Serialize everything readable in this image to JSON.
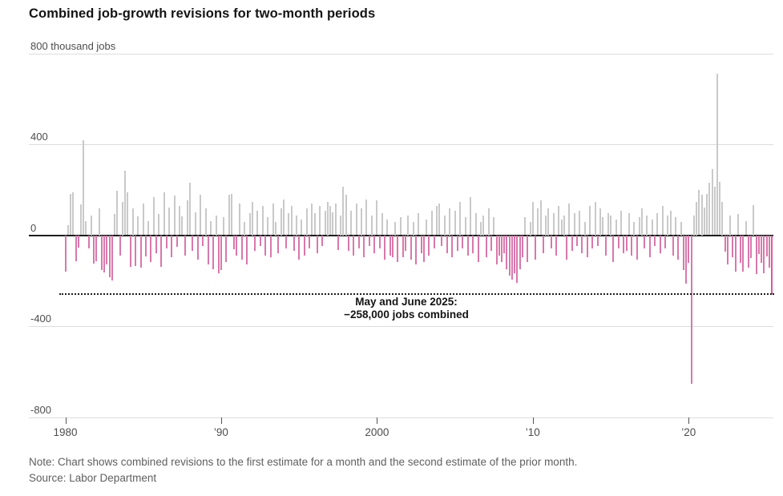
{
  "title": "Combined job-growth revisions for two-month periods",
  "annotation": {
    "line1": "May and June 2025:",
    "line2": "−258,000 jobs combined"
  },
  "note": "Note: Chart shows combined revisions to the first estimate for a month and the second estimate of the prior month.",
  "source": "Source: Labor Department",
  "colors": {
    "positive_bar": "#c9c9c9",
    "negative_bar": "#d878aa",
    "highlight_bar": "#e2579e",
    "axis": "#1f1f1f",
    "gridline": "#dcdcdc",
    "text": "#141414",
    "muted_text": "#5f5f5f"
  },
  "chart_data": {
    "type": "bar",
    "title": "Combined job-growth revisions for two-month periods",
    "unit": "thousand jobs",
    "xlabel": "",
    "ylabel": "thousand jobs",
    "ylim": [
      -800,
      800
    ],
    "grid": true,
    "legend": false,
    "yticks": [
      {
        "value": 800,
        "label": "800 thousand jobs"
      },
      {
        "value": 400,
        "label": "400"
      },
      {
        "value": 0,
        "label": "0"
      },
      {
        "value": -400,
        "label": "-400"
      },
      {
        "value": -800,
        "label": "-800"
      }
    ],
    "xticks": [
      {
        "label": "1980",
        "year": 1980
      },
      {
        "label": "’90",
        "year": 1990
      },
      {
        "label": "2000",
        "year": 2000
      },
      {
        "label": "’10",
        "year": 2010
      },
      {
        "label": "’20",
        "year": 2020
      }
    ],
    "reference_line": {
      "value": -258,
      "style": "dotted",
      "meaning": "May and June 2025 combined revision"
    },
    "highlight_last_bar": true,
    "periods_per_year": 6,
    "series": [
      {
        "year": 1980,
        "values": [
          -160,
          45,
          182,
          189,
          -113,
          -53
        ]
      },
      {
        "year": 1981,
        "values": [
          135,
          418,
          62,
          -58,
          88,
          -124
        ]
      },
      {
        "year": 1982,
        "values": [
          -116,
          118,
          -152,
          -163,
          -130,
          -184
        ]
      },
      {
        "year": 1983,
        "values": [
          -200,
          92,
          196,
          -88,
          148,
          283
        ]
      },
      {
        "year": 1984,
        "values": [
          189,
          -140,
          118,
          -137,
          82,
          -143
        ]
      },
      {
        "year": 1985,
        "values": [
          140,
          -92,
          62,
          -118,
          168,
          -78
        ]
      },
      {
        "year": 1986,
        "values": [
          92,
          -138,
          188,
          -58,
          120,
          -98
        ]
      },
      {
        "year": 1987,
        "values": [
          174,
          -52,
          130,
          84,
          -88,
          152
        ]
      },
      {
        "year": 1988,
        "values": [
          230,
          -68,
          102,
          -108,
          177,
          -48
        ]
      },
      {
        "year": 1989,
        "values": [
          118,
          -128,
          62,
          -148,
          88,
          -168
        ]
      },
      {
        "year": 1990,
        "values": [
          -152,
          78,
          -118,
          177,
          183,
          -63
        ]
      },
      {
        "year": 1991,
        "values": [
          -88,
          138,
          -108,
          58,
          -128,
          98
        ]
      },
      {
        "year": 1992,
        "values": [
          148,
          -68,
          108,
          -48,
          128,
          -88
        ]
      },
      {
        "year": 1993,
        "values": [
          78,
          -98,
          138,
          58,
          -78,
          118
        ]
      },
      {
        "year": 1994,
        "values": [
          158,
          -58,
          98,
          128,
          -68,
          88
        ]
      },
      {
        "year": 1995,
        "values": [
          -108,
          68,
          -88,
          118,
          -58,
          138
        ]
      },
      {
        "year": 1996,
        "values": [
          98,
          -78,
          128,
          -48,
          108,
          148
        ]
      },
      {
        "year": 1997,
        "values": [
          128,
          102,
          140,
          -66,
          88,
          215
        ]
      },
      {
        "year": 1998,
        "values": [
          178,
          -68,
          108,
          -88,
          138,
          -58
        ]
      },
      {
        "year": 1999,
        "values": [
          118,
          -98,
          158,
          -48,
          88,
          -78
        ]
      },
      {
        "year": 2000,
        "values": [
          152,
          -58,
          98,
          -108,
          68,
          -88
        ]
      },
      {
        "year": 2001,
        "values": [
          -95,
          58,
          -118,
          78,
          -98,
          -68
        ]
      },
      {
        "year": 2002,
        "values": [
          88,
          -108,
          58,
          -128,
          98,
          -78
        ]
      },
      {
        "year": 2003,
        "values": [
          -118,
          68,
          -88,
          108,
          -58,
          128
        ]
      },
      {
        "year": 2004,
        "values": [
          138,
          -48,
          88,
          -78,
          118,
          -98
        ]
      },
      {
        "year": 2005,
        "values": [
          108,
          -68,
          148,
          -58,
          78,
          -88
        ]
      },
      {
        "year": 2006,
        "values": [
          168,
          -78,
          98,
          -118,
          58,
          88
        ]
      },
      {
        "year": 2007,
        "values": [
          -98,
          118,
          -68,
          78,
          -128,
          -88
        ]
      },
      {
        "year": 2008,
        "values": [
          -118,
          -78,
          -148,
          -178,
          -196,
          -168
        ]
      },
      {
        "year": 2009,
        "values": [
          -209,
          -148,
          -98,
          78,
          -118,
          58
        ]
      },
      {
        "year": 2010,
        "values": [
          145,
          -106,
          117,
          152,
          -78,
          88
        ]
      },
      {
        "year": 2011,
        "values": [
          118,
          -58,
          98,
          -88,
          128,
          68
        ]
      },
      {
        "year": 2012,
        "values": [
          88,
          -108,
          138,
          -68,
          98,
          -48
        ]
      },
      {
        "year": 2013,
        "values": [
          108,
          -78,
          58,
          -98,
          128,
          -58
        ]
      },
      {
        "year": 2014,
        "values": [
          148,
          -48,
          118,
          78,
          -88,
          98
        ]
      },
      {
        "year": 2015,
        "values": [
          88,
          -118,
          68,
          -58,
          108,
          -78
        ]
      },
      {
        "year": 2016,
        "values": [
          -68,
          98,
          -88,
          58,
          -108,
          78
        ]
      },
      {
        "year": 2017,
        "values": [
          118,
          -58,
          88,
          -98,
          68,
          -48
        ]
      },
      {
        "year": 2018,
        "values": [
          98,
          -78,
          128,
          -58,
          88,
          108
        ]
      },
      {
        "year": 2019,
        "values": [
          -88,
          78,
          -108,
          58,
          -152,
          -212
        ]
      },
      {
        "year": 2020,
        "values": [
          -120,
          -655,
          88,
          148,
          198,
          178
        ]
      },
      {
        "year": 2021,
        "values": [
          122,
          182,
          232,
          292,
          212,
          711
        ]
      },
      {
        "year": 2022,
        "values": [
          234,
          148,
          -71,
          -130,
          88,
          -95
        ]
      },
      {
        "year": 2023,
        "values": [
          -160,
          92,
          -122,
          -159,
          62,
          -142
        ]
      },
      {
        "year": 2024,
        "values": [
          -102,
          132,
          -171,
          -82,
          -122,
          -166
        ]
      },
      {
        "year": 2025,
        "values": [
          -92,
          -142,
          -258
        ]
      }
    ]
  }
}
